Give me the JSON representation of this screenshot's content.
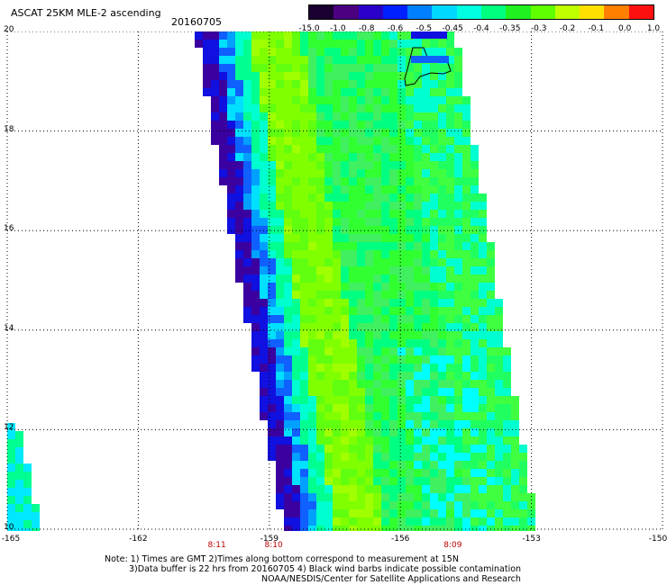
{
  "header": {
    "title": "ASCAT 25KM MLE-2 ascending",
    "date": "20160705"
  },
  "colorbar": {
    "labels": [
      "-15.0",
      "-1.0",
      "-0.8",
      "-0.6",
      "-0.5",
      "-0.45",
      "-0.4",
      "-0.35",
      "-0.3",
      "-0.2",
      "-0.1",
      "0.0",
      "1.0"
    ],
    "colors": [
      "#1a0030",
      "#4a0080",
      "#2a00c8",
      "#0020ff",
      "#0080ff",
      "#00d8ff",
      "#00ffe0",
      "#00ff80",
      "#20f020",
      "#60ff00",
      "#c0ff00",
      "#ffe000",
      "#ff8000",
      "#ff1010"
    ]
  },
  "axes": {
    "y_ticks": [
      "20",
      "18",
      "16",
      "14",
      "12",
      "10"
    ],
    "x_ticks": [
      "-165",
      "-162",
      "-159",
      "-156",
      "-153",
      "-150"
    ],
    "lon_range": [
      -165,
      -150
    ],
    "lat_range": [
      10,
      20
    ],
    "times": [
      {
        "label": "8:11",
        "lon": -160.2
      },
      {
        "label": "8:10",
        "lon": -158.9
      },
      {
        "label": "8:09",
        "lon": -154.8
      }
    ]
  },
  "notes": {
    "line1": "Note: 1) Times are GMT 2)Times along bottom correspond to measurement at 15N",
    "line2": "3)Data buffer is 22 hrs from 20160705 4) Black wind barbs indicate possible contamination",
    "line3": "NOAA/NESDIS/Center for Satellite Applications and Research"
  }
}
